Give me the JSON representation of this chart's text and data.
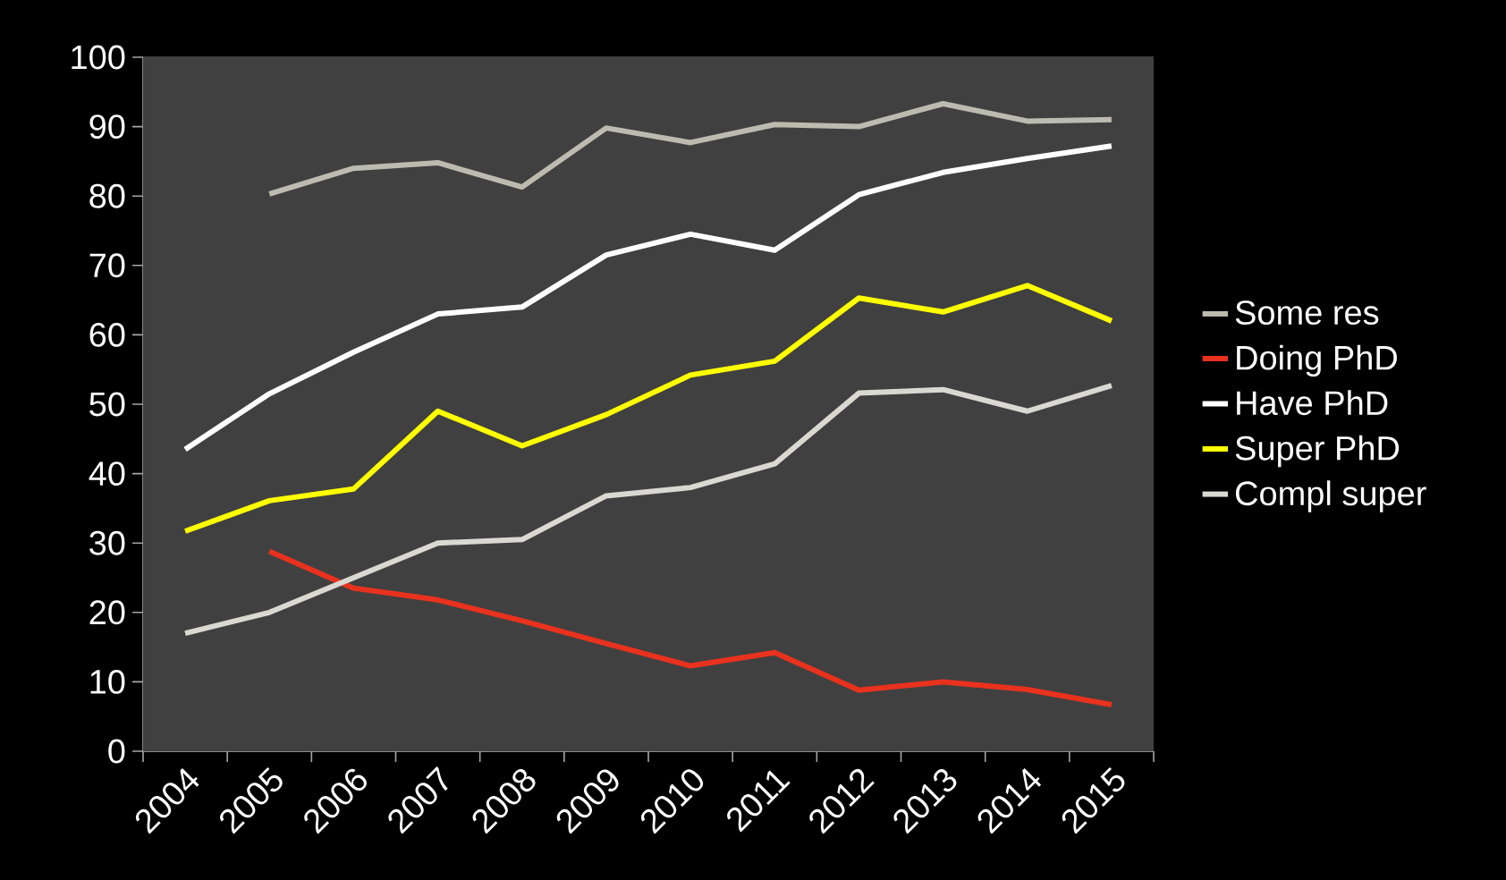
{
  "chart_data": {
    "type": "line",
    "categories": [
      "2004",
      "2005",
      "2006",
      "2007",
      "2008",
      "2009",
      "2010",
      "2011",
      "2012",
      "2013",
      "2014",
      "2015"
    ],
    "series": [
      {
        "name": "Some res",
        "color": "#bdbbaf",
        "values": [
          null,
          80.3,
          84,
          84.8,
          81.3,
          89.8,
          87.7,
          90.3,
          90,
          93.3,
          90.8,
          91
        ]
      },
      {
        "name": "Doing PhD",
        "color": "#e8321e",
        "values": [
          null,
          28.8,
          23.5,
          21.8,
          18.8,
          15.5,
          12.3,
          14.2,
          8.8,
          10,
          8.9,
          6.7
        ]
      },
      {
        "name": "Have PhD",
        "color": "#ffffff",
        "values": [
          43.5,
          51.5,
          57.5,
          63,
          64,
          71.5,
          74.5,
          72.2,
          80.2,
          83.4,
          85.4,
          87.2
        ]
      },
      {
        "name": "Super PhD",
        "color": "#ffff00",
        "values": [
          31.7,
          36.1,
          37.8,
          49,
          44,
          48.5,
          54.2,
          56.2,
          65.3,
          63.3,
          67.1,
          62
        ]
      },
      {
        "name": "Compl super",
        "color": "#d9d9d2",
        "values": [
          17,
          20,
          25,
          30,
          30.5,
          36.8,
          38,
          41.4,
          51.6,
          52.1,
          49,
          52.7
        ]
      }
    ],
    "ylim": [
      0,
      100
    ],
    "yticks": [
      0,
      10,
      20,
      30,
      40,
      50,
      60,
      70,
      80,
      90,
      100
    ],
    "grid": "y",
    "legend": "right",
    "marker": "none",
    "line_style": "solid"
  }
}
